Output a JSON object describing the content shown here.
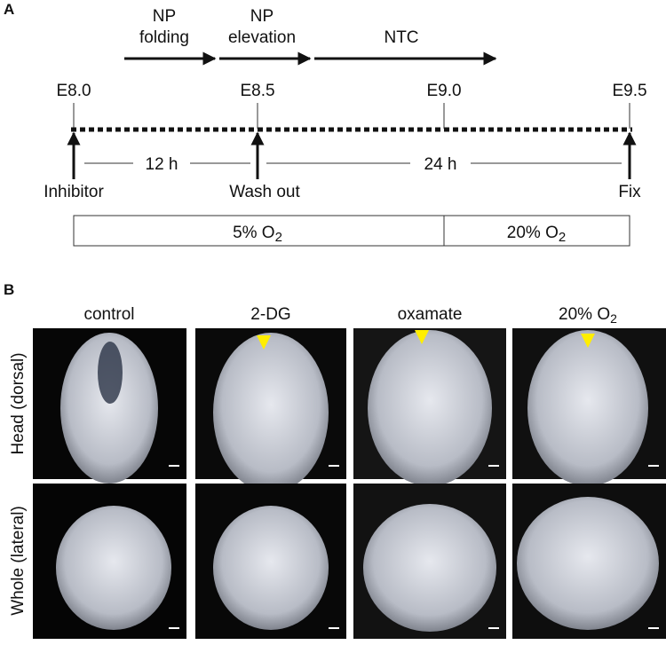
{
  "panel_a": {
    "label": "A",
    "stages": [
      {
        "line1": "NP",
        "line2": "folding"
      },
      {
        "line1": "NP",
        "line2": "elevation"
      },
      {
        "line1": "NTC"
      }
    ],
    "time_points": [
      "E8.0",
      "E8.5",
      "E9.0",
      "E9.5"
    ],
    "events": [
      "Inhibitor",
      "Wash out",
      "Fix"
    ],
    "intervals": [
      "12 h",
      "24 h"
    ],
    "oxygen": [
      {
        "text": "5% O",
        "sub": "2"
      },
      {
        "text": "20% O",
        "sub": "2"
      }
    ]
  },
  "panel_b": {
    "label": "B",
    "columns": [
      "control",
      "2-DG",
      "oxamate",
      {
        "text": "20% O",
        "sub": "2"
      }
    ],
    "rows": [
      "Head (dorsal)",
      "Whole (lateral)"
    ]
  }
}
